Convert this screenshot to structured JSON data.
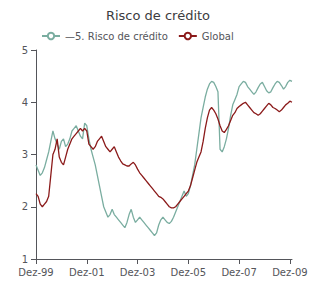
{
  "chart_data": {
    "type": "line",
    "title": "Risco de crédito",
    "categories": [
      "Dez-99",
      null,
      null,
      null,
      null,
      null,
      null,
      null,
      null,
      null,
      null,
      null,
      null,
      null,
      null,
      null,
      null,
      null,
      null,
      null,
      null,
      null,
      null,
      null,
      "Dez-01",
      null,
      null,
      null,
      null,
      null,
      null,
      null,
      null,
      null,
      null,
      null,
      null,
      null,
      null,
      null,
      null,
      null,
      null,
      null,
      null,
      null,
      null,
      null,
      "Dez-03",
      null,
      null,
      null,
      null,
      null,
      null,
      null,
      null,
      null,
      null,
      null,
      null,
      null,
      null,
      null,
      null,
      null,
      null,
      null,
      null,
      null,
      null,
      null,
      "Dez-05",
      null,
      null,
      null,
      null,
      null,
      null,
      null,
      null,
      null,
      null,
      null,
      null,
      null,
      null,
      null,
      null,
      null,
      null,
      null,
      null,
      null,
      null,
      null,
      "Dez-07",
      null,
      null,
      null,
      null,
      null,
      null,
      null,
      null,
      null,
      null,
      null,
      null,
      null,
      null,
      null,
      null,
      null,
      null,
      null,
      null,
      null,
      null,
      null,
      "Dez-09",
      null
    ],
    "series": [
      {
        "name": "—5. Risco de crédito",
        "color": "#7aada0",
        "values": [
          2.8,
          2.7,
          2.6,
          2.65,
          2.75,
          2.9,
          3.05,
          3.25,
          3.45,
          3.3,
          3.2,
          3.1,
          3.25,
          3.3,
          3.15,
          3.2,
          3.3,
          3.45,
          3.5,
          3.55,
          3.45,
          3.35,
          3.3,
          3.6,
          3.55,
          3.3,
          3.1,
          2.95,
          2.8,
          2.6,
          2.4,
          2.2,
          2.0,
          1.9,
          1.8,
          1.85,
          1.95,
          1.85,
          1.8,
          1.75,
          1.7,
          1.65,
          1.6,
          1.7,
          1.85,
          1.95,
          1.8,
          1.7,
          1.75,
          1.8,
          1.75,
          1.7,
          1.65,
          1.6,
          1.55,
          1.5,
          1.45,
          1.5,
          1.65,
          1.75,
          1.8,
          1.75,
          1.7,
          1.68,
          1.72,
          1.8,
          1.9,
          2.0,
          2.1,
          2.2,
          2.3,
          2.2,
          2.25,
          2.4,
          2.6,
          2.8,
          3.1,
          3.4,
          3.7,
          3.9,
          4.1,
          4.25,
          4.35,
          4.4,
          4.38,
          4.3,
          4.2,
          3.1,
          3.05,
          3.15,
          3.3,
          3.5,
          3.75,
          3.95,
          4.05,
          4.15,
          4.3,
          4.35,
          4.4,
          4.38,
          4.3,
          4.25,
          4.2,
          4.15,
          4.2,
          4.28,
          4.35,
          4.38,
          4.3,
          4.22,
          4.18,
          4.2,
          4.28,
          4.35,
          4.4,
          4.38,
          4.32,
          4.25,
          4.3,
          4.38,
          4.42,
          4.4
        ]
      },
      {
        "name": "Global",
        "color": "#8b1a1a",
        "values": [
          2.25,
          2.2,
          2.05,
          2.0,
          2.05,
          2.1,
          2.2,
          2.6,
          3.0,
          3.1,
          3.3,
          2.95,
          2.85,
          2.8,
          2.95,
          3.1,
          3.2,
          3.3,
          3.35,
          3.4,
          3.45,
          3.5,
          3.45,
          3.5,
          3.45,
          3.2,
          3.15,
          3.1,
          3.15,
          3.25,
          3.3,
          3.35,
          3.25,
          3.15,
          3.1,
          3.05,
          3.1,
          3.15,
          3.05,
          2.95,
          2.88,
          2.82,
          2.8,
          2.78,
          2.78,
          2.82,
          2.85,
          2.8,
          2.72,
          2.65,
          2.6,
          2.55,
          2.5,
          2.45,
          2.4,
          2.35,
          2.3,
          2.25,
          2.2,
          2.18,
          2.15,
          2.1,
          2.05,
          2.0,
          1.98,
          1.98,
          2.0,
          2.05,
          2.1,
          2.15,
          2.2,
          2.25,
          2.3,
          2.4,
          2.55,
          2.7,
          2.85,
          2.95,
          3.05,
          3.25,
          3.5,
          3.7,
          3.85,
          3.9,
          3.85,
          3.78,
          3.68,
          3.55,
          3.45,
          3.42,
          3.48,
          3.55,
          3.65,
          3.75,
          3.8,
          3.88,
          3.92,
          3.95,
          3.98,
          4.0,
          3.95,
          3.9,
          3.85,
          3.8,
          3.78,
          3.75,
          3.78,
          3.83,
          3.88,
          3.93,
          3.98,
          3.95,
          3.9,
          3.88,
          3.85,
          3.82,
          3.85,
          3.9,
          3.95,
          3.98,
          4.02,
          4.0
        ]
      }
    ],
    "ylim": [
      1,
      5
    ],
    "yticks": [
      1,
      2,
      3,
      4,
      5
    ],
    "grid": false,
    "legend": "upper left"
  }
}
